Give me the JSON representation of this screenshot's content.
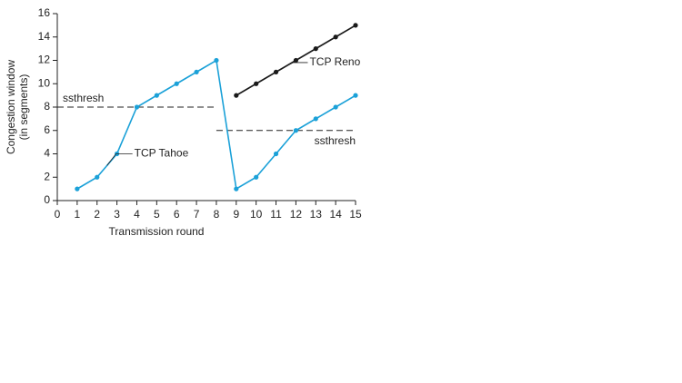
{
  "chart_data": {
    "type": "line",
    "xlabel": "Transmission round",
    "ylabel": [
      "Congestion window",
      "(in segments)"
    ],
    "xlim": [
      0,
      15
    ],
    "xticks": [
      0,
      1,
      2,
      3,
      4,
      5,
      6,
      7,
      8,
      9,
      10,
      11,
      12,
      13,
      14,
      15
    ],
    "ylim": [
      0,
      16
    ],
    "yticks": [
      0,
      2,
      4,
      6,
      8,
      10,
      12,
      14,
      16
    ],
    "grid": false,
    "series": [
      {
        "name": "TCP Tahoe",
        "color": "#1ba1d8",
        "x": [
          1,
          2,
          3,
          4,
          5,
          6,
          7,
          8,
          9,
          10,
          11,
          12,
          13,
          14,
          15
        ],
        "values": [
          1,
          2,
          4,
          8,
          9,
          10,
          11,
          12,
          1,
          2,
          4,
          6,
          7,
          8,
          9
        ]
      },
      {
        "name": "TCP Reno",
        "color": "#1a1a1a",
        "x": [
          9,
          10,
          11,
          12,
          13,
          14,
          15
        ],
        "values": [
          9,
          10,
          11,
          12,
          13,
          14,
          15
        ]
      }
    ],
    "thresholds": [
      {
        "label": "ssthresh",
        "value": 8,
        "xrange": [
          0,
          8
        ]
      },
      {
        "label": "ssthresh",
        "value": 6,
        "xrange": [
          8,
          15
        ]
      }
    ]
  }
}
